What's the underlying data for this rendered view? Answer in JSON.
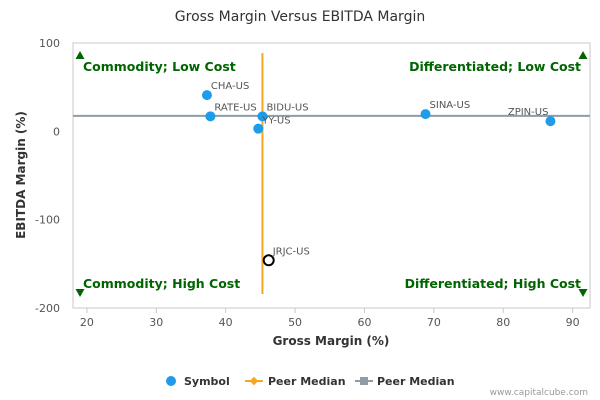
{
  "chart_data": {
    "type": "scatter",
    "title": "Gross Margin Versus EBITDA Margin",
    "xlabel": "Gross Margin (%)",
    "ylabel": "EBITDA Margin (%)",
    "xlim": [
      18,
      92.5
    ],
    "ylim": [
      -200,
      100
    ],
    "x_ticks": [
      20,
      30,
      40,
      50,
      60,
      70,
      80,
      90
    ],
    "y_ticks": [
      100,
      0,
      -100,
      -200
    ],
    "points": [
      {
        "label": "CHA-US",
        "x": 37.3,
        "y": 41,
        "highlight": false
      },
      {
        "label": "RATE-US",
        "x": 37.8,
        "y": 17,
        "highlight": false
      },
      {
        "label": "BIDU-US",
        "x": 45.3,
        "y": 17,
        "highlight": false
      },
      {
        "label": "YY-US",
        "x": 44.7,
        "y": 3,
        "highlight": false
      },
      {
        "label": "SINA-US",
        "x": 68.8,
        "y": 19.5,
        "highlight": false
      },
      {
        "label": "ZPIN-US",
        "x": 86.8,
        "y": 11.5,
        "highlight": false
      },
      {
        "label": "JRJC-US",
        "x": 46.2,
        "y": -146,
        "highlight": true
      }
    ],
    "peer_median_x": 45.3,
    "peer_median_y": 17.5,
    "quadrants": {
      "top_left": "Commodity; Low Cost",
      "top_right": "Differentiated; Low Cost",
      "bottom_left": "Commodity; High Cost",
      "bottom_right": "Differentiated; High Cost"
    },
    "legend": [
      {
        "name": "Symbol",
        "kind": "point",
        "color": "#1e9bea"
      },
      {
        "name": "Peer Median",
        "kind": "vline",
        "color": "#f5a623"
      },
      {
        "name": "Peer Median",
        "kind": "hline",
        "color": "#8f9ba5"
      }
    ],
    "colors": {
      "point": "#1e9bea",
      "highlight_stroke": "#000000",
      "vmedian": "#f5a623",
      "hmedian": "#8f9ba5",
      "quad": "#006400"
    }
  },
  "footer": {
    "credit": "www.capitalcube.com"
  }
}
